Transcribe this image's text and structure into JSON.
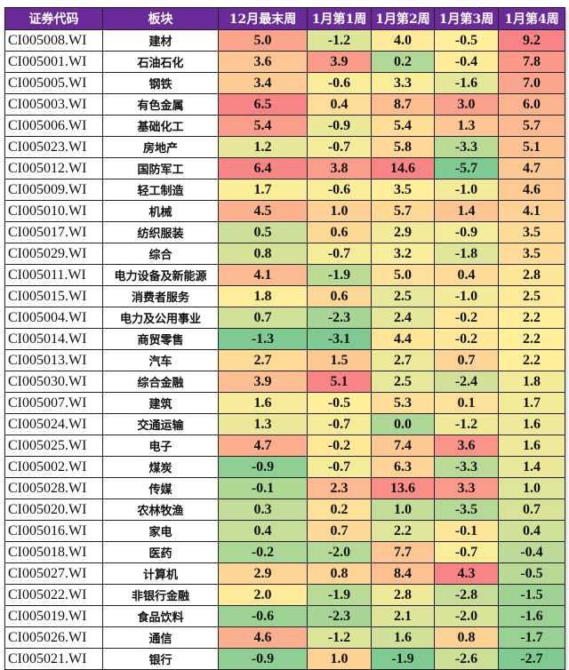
{
  "table": {
    "headers": [
      "证券代码",
      "板块",
      "12月最末周",
      "1月第1周",
      "1月第2周",
      "1月第3周",
      "1月第4周"
    ],
    "rows": [
      {
        "code": "CI005008.WI",
        "sector": "建材",
        "values": [
          "5.0",
          "-1.2",
          "4.0",
          "-0.5",
          "9.2"
        ]
      },
      {
        "code": "CI005001.WI",
        "sector": "石油石化",
        "values": [
          "3.6",
          "3.9",
          "0.2",
          "-0.4",
          "7.8"
        ]
      },
      {
        "code": "CI005005.WI",
        "sector": "钢铁",
        "values": [
          "3.4",
          "-0.6",
          "3.3",
          "-1.6",
          "7.0"
        ]
      },
      {
        "code": "CI005003.WI",
        "sector": "有色金属",
        "values": [
          "6.5",
          "0.4",
          "8.7",
          "3.0",
          "6.0"
        ]
      },
      {
        "code": "CI005006.WI",
        "sector": "基础化工",
        "values": [
          "5.4",
          "-0.9",
          "5.4",
          "1.3",
          "5.7"
        ]
      },
      {
        "code": "CI005023.WI",
        "sector": "房地产",
        "values": [
          "1.2",
          "-0.7",
          "5.8",
          "-3.3",
          "5.1"
        ]
      },
      {
        "code": "CI005012.WI",
        "sector": "国防军工",
        "values": [
          "6.4",
          "3.8",
          "14.6",
          "-5.7",
          "4.7"
        ]
      },
      {
        "code": "CI005009.WI",
        "sector": "轻工制造",
        "values": [
          "1.7",
          "-0.6",
          "3.5",
          "-1.0",
          "4.6"
        ]
      },
      {
        "code": "CI005010.WI",
        "sector": "机械",
        "values": [
          "4.5",
          "1.0",
          "5.7",
          "1.4",
          "4.1"
        ]
      },
      {
        "code": "CI005017.WI",
        "sector": "纺织服装",
        "values": [
          "0.5",
          "0.6",
          "2.9",
          "-0.9",
          "3.5"
        ]
      },
      {
        "code": "CI005029.WI",
        "sector": "综合",
        "values": [
          "0.8",
          "-0.7",
          "3.2",
          "-1.8",
          "3.5"
        ]
      },
      {
        "code": "CI005011.WI",
        "sector": "电力设备及新能源",
        "values": [
          "4.1",
          "-1.9",
          "5.0",
          "0.4",
          "2.8"
        ]
      },
      {
        "code": "CI005015.WI",
        "sector": "消费者服务",
        "values": [
          "1.8",
          "0.6",
          "2.5",
          "-1.0",
          "2.5"
        ]
      },
      {
        "code": "CI005004.WI",
        "sector": "电力及公用事业",
        "values": [
          "0.7",
          "-2.3",
          "2.4",
          "-0.2",
          "2.2"
        ]
      },
      {
        "code": "CI005014.WI",
        "sector": "商贸零售",
        "values": [
          "-1.3",
          "-3.1",
          "4.4",
          "-0.2",
          "2.2"
        ]
      },
      {
        "code": "CI005013.WI",
        "sector": "汽车",
        "values": [
          "2.7",
          "1.5",
          "2.7",
          "0.7",
          "2.2"
        ]
      },
      {
        "code": "CI005030.WI",
        "sector": "综合金融",
        "values": [
          "3.9",
          "5.1",
          "2.5",
          "-2.4",
          "1.8"
        ]
      },
      {
        "code": "CI005007.WI",
        "sector": "建筑",
        "values": [
          "1.6",
          "-0.5",
          "5.3",
          "0.1",
          "1.7"
        ]
      },
      {
        "code": "CI005024.WI",
        "sector": "交通运输",
        "values": [
          "1.3",
          "-0.7",
          "0.0",
          "-1.2",
          "1.6"
        ]
      },
      {
        "code": "CI005025.WI",
        "sector": "电子",
        "values": [
          "4.7",
          "-0.2",
          "7.4",
          "3.6",
          "1.6"
        ]
      },
      {
        "code": "CI005002.WI",
        "sector": "煤炭",
        "values": [
          "-0.9",
          "-0.7",
          "6.3",
          "-3.3",
          "1.4"
        ]
      },
      {
        "code": "CI005028.WI",
        "sector": "传媒",
        "values": [
          "-0.1",
          "2.3",
          "13.6",
          "3.3",
          "1.0"
        ]
      },
      {
        "code": "CI005020.WI",
        "sector": "农林牧渔",
        "values": [
          "0.3",
          "0.2",
          "1.0",
          "-3.5",
          "0.7"
        ]
      },
      {
        "code": "CI005016.WI",
        "sector": "家电",
        "values": [
          "0.4",
          "0.7",
          "2.2",
          "-0.1",
          "0.4"
        ]
      },
      {
        "code": "CI005018.WI",
        "sector": "医药",
        "values": [
          "-0.2",
          "-2.0",
          "7.7",
          "-0.7",
          "-0.4"
        ]
      },
      {
        "code": "CI005027.WI",
        "sector": "计算机",
        "values": [
          "2.9",
          "0.8",
          "8.4",
          "4.3",
          "-0.5"
        ]
      },
      {
        "code": "CI005022.WI",
        "sector": "非银行金融",
        "values": [
          "2.0",
          "-1.9",
          "2.8",
          "-2.8",
          "-1.5"
        ]
      },
      {
        "code": "CI005019.WI",
        "sector": "食品饮料",
        "values": [
          "-0.6",
          "-2.3",
          "2.1",
          "-2.0",
          "-1.6"
        ]
      },
      {
        "code": "CI005026.WI",
        "sector": "通信",
        "values": [
          "4.6",
          "-1.2",
          "1.6",
          "0.8",
          "-1.7"
        ]
      },
      {
        "code": "CI005021.WI",
        "sector": "银行",
        "values": [
          "-0.9",
          "1.0",
          "-1.9",
          "-2.6",
          "-2.7"
        ]
      }
    ]
  },
  "colors": {
    "header_bg": "#6a2a9a",
    "scale_low": "#63be7b",
    "scale_mid": "#ffeb84",
    "scale_high": "#f8696b"
  }
}
